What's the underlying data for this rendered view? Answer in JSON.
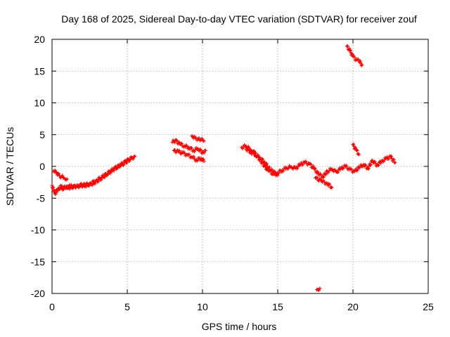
{
  "chart_data": {
    "type": "scatter",
    "title": "Day 168 of 2025, Sidereal Day-to-day VTEC variation (SDTVAR) for receiver zouf",
    "xlabel": "GPS time / hours",
    "ylabel": "SDTVAR / TECUs",
    "xlim": [
      0,
      25
    ],
    "ylim": [
      -20,
      20
    ],
    "xticks": [
      0,
      5,
      10,
      15,
      20,
      25
    ],
    "yticks": [
      -20,
      -15,
      -10,
      -5,
      0,
      5,
      10,
      15,
      20
    ],
    "grid": true,
    "marker": "+",
    "colors": {
      "series": "#ff0000",
      "grid": "#a0a0a0",
      "axis": "#000000"
    },
    "series": [
      {
        "name": "SDTVAR",
        "segments": [
          {
            "x": [
              0.0,
              0.2,
              0.4,
              0.6,
              0.9,
              1.2,
              1.6,
              2.0,
              2.4,
              2.8,
              3.2,
              3.6,
              4.0,
              4.4,
              4.8,
              5.2,
              5.5
            ],
            "y": [
              -3.0,
              -4.3,
              -3.5,
              -3.1,
              -3.4,
              -3.1,
              -3.2,
              -2.9,
              -3.0,
              -2.6,
              -2.0,
              -1.3,
              -0.6,
              0.0,
              0.5,
              1.1,
              1.6
            ]
          },
          {
            "x": [
              0.1,
              0.3,
              0.5,
              0.8,
              1.0
            ],
            "y": [
              -0.7,
              -1.0,
              -1.5,
              -1.8,
              -2.0
            ]
          },
          {
            "x": [
              0.5,
              0.9,
              1.3,
              1.7,
              2.1,
              2.5,
              2.9,
              3.3,
              3.7,
              4.1,
              4.5,
              4.9,
              5.3
            ],
            "y": [
              -3.6,
              -3.4,
              -3.3,
              -3.1,
              -3.0,
              -2.7,
              -2.3,
              -1.7,
              -1.1,
              -0.4,
              0.1,
              0.8,
              1.3
            ]
          },
          {
            "x": [
              8.0,
              8.2,
              8.5,
              8.8,
              9.1,
              9.4,
              9.7,
              10.0,
              10.2
            ],
            "y": [
              3.8,
              4.1,
              3.5,
              3.2,
              3.0,
              2.5,
              2.8,
              2.2,
              2.5
            ]
          },
          {
            "x": [
              8.1,
              8.4,
              8.7,
              9.0,
              9.3,
              9.6,
              9.9,
              10.1
            ],
            "y": [
              2.5,
              2.3,
              2.1,
              1.8,
              1.5,
              1.0,
              1.3,
              0.8
            ]
          },
          {
            "x": [
              9.3,
              9.5,
              9.7,
              9.9,
              10.1
            ],
            "y": [
              4.8,
              4.5,
              4.3,
              4.2,
              4.0
            ]
          },
          {
            "x": [
              12.6,
              12.9,
              13.2,
              13.5,
              13.8,
              14.1,
              14.4,
              14.7,
              15.0,
              15.3,
              15.6,
              15.9,
              16.2,
              16.5,
              16.8,
              17.1,
              17.4,
              17.7,
              18.0,
              18.3,
              18.6,
              18.9,
              19.2,
              19.5,
              19.8,
              20.1,
              20.4,
              20.7,
              21.0,
              21.3,
              21.6,
              21.9,
              22.2,
              22.5,
              22.8
            ],
            "y": [
              3.0,
              3.2,
              2.6,
              2.1,
              1.1,
              0.1,
              -0.7,
              -1.2,
              -1.0,
              -0.6,
              -0.2,
              -0.1,
              -0.3,
              0.3,
              0.6,
              0.4,
              -0.3,
              -1.2,
              -1.6,
              -0.8,
              -0.4,
              -0.9,
              -0.3,
              0.0,
              -0.5,
              -0.8,
              -0.2,
              0.3,
              -0.3,
              0.9,
              0.2,
              0.8,
              1.2,
              1.5,
              0.6
            ]
          },
          {
            "x": [
              12.9,
              13.2,
              13.5,
              13.8,
              14.1,
              14.4,
              14.7,
              15.0
            ],
            "y": [
              2.7,
              2.3,
              1.8,
              1.4,
              0.7,
              -0.2,
              -0.9,
              -1.4
            ]
          },
          {
            "x": [
              17.5,
              17.9,
              18.3,
              18.6
            ],
            "y": [
              -1.8,
              -2.3,
              -2.7,
              -3.3
            ]
          },
          {
            "x": [
              20.0,
              20.2,
              20.4
            ],
            "y": [
              3.4,
              2.6,
              1.9
            ]
          },
          {
            "x": [
              19.6,
              19.8,
              20.0,
              20.2,
              20.4,
              20.6
            ],
            "y": [
              18.9,
              18.2,
              17.3,
              16.8,
              16.6,
              16.0
            ]
          },
          {
            "x": [
              17.6,
              17.8
            ],
            "y": [
              -19.4,
              -19.2
            ]
          }
        ]
      }
    ]
  }
}
